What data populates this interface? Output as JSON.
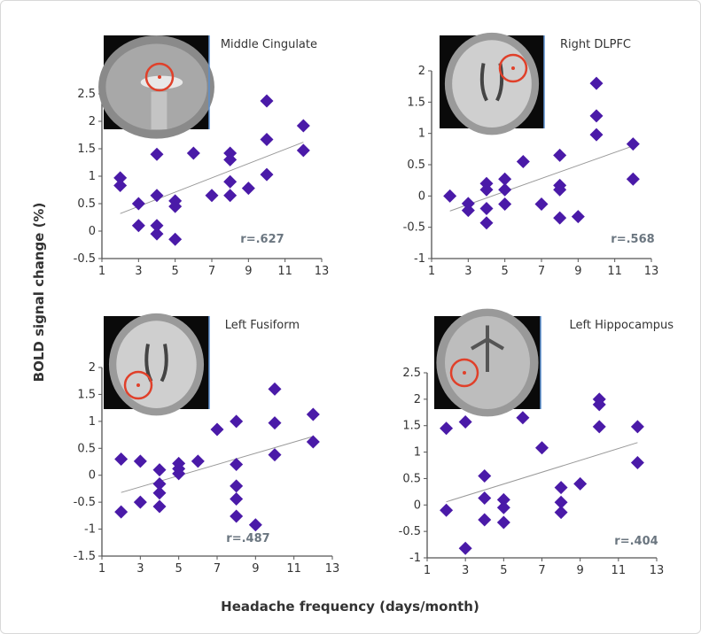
{
  "y_axis_label": "BOLD signal change (%)",
  "x_axis_label": "Headache frequency (days/month)",
  "marker_color": "#4a1aa8",
  "trend_color": "#999999",
  "chart_data": [
    {
      "type": "scatter",
      "title": "Middle Cingulate",
      "r_label": "r=.627",
      "xlim": [
        1,
        13
      ],
      "ylim": [
        -0.5,
        2.5
      ],
      "xticks": [
        1,
        3,
        5,
        7,
        9,
        11,
        13
      ],
      "yticks": [
        -0.5,
        0,
        0.5,
        1,
        1.5,
        2,
        2.5
      ],
      "x": [
        2,
        2,
        3,
        3,
        4,
        4,
        4,
        4,
        5,
        5,
        5,
        6,
        7,
        8,
        8,
        8,
        8,
        9,
        10,
        10,
        10,
        12,
        12
      ],
      "y": [
        0.97,
        0.83,
        0.5,
        0.1,
        1.4,
        0.65,
        0.1,
        -0.05,
        0.55,
        0.45,
        -0.15,
        1.42,
        0.65,
        1.42,
        1.3,
        0.9,
        0.65,
        0.78,
        2.37,
        1.67,
        1.03,
        1.92,
        1.47
      ],
      "trend": {
        "x": [
          2,
          12
        ],
        "y": [
          0.32,
          1.62
        ]
      }
    },
    {
      "type": "scatter",
      "title": "Right DLPFC",
      "r_label": "r=.568",
      "xlim": [
        1,
        13
      ],
      "ylim": [
        -1,
        2
      ],
      "xticks": [
        1,
        3,
        5,
        7,
        9,
        11,
        13
      ],
      "yticks": [
        -1,
        -0.5,
        0,
        0.5,
        1,
        1.5,
        2
      ],
      "x": [
        2,
        3,
        3,
        4,
        4,
        4,
        4,
        5,
        5,
        5,
        6,
        7,
        8,
        8,
        8,
        8,
        9,
        10,
        10,
        10,
        12,
        12
      ],
      "y": [
        0,
        -0.12,
        -0.23,
        0.2,
        0.1,
        -0.2,
        -0.43,
        0.27,
        0.1,
        -0.13,
        0.55,
        -0.13,
        0.65,
        0.17,
        0.1,
        -0.35,
        -0.33,
        1.8,
        1.28,
        0.98,
        0.83,
        0.27
      ],
      "trend": {
        "x": [
          2,
          12
        ],
        "y": [
          -0.24,
          0.8
        ]
      }
    },
    {
      "type": "scatter",
      "title": "Left Fusiform",
      "r_label": "r=.487",
      "xlim": [
        1,
        13
      ],
      "ylim": [
        -1.5,
        2
      ],
      "xticks": [
        1,
        3,
        5,
        7,
        9,
        11,
        13
      ],
      "yticks": [
        -1.5,
        -1,
        -0.5,
        0,
        0.5,
        1,
        1.5,
        2
      ],
      "x": [
        2,
        2,
        3,
        3,
        4,
        4,
        4,
        4,
        5,
        5,
        5,
        6,
        7,
        8,
        8,
        8,
        8,
        8,
        9,
        10,
        10,
        10,
        12,
        12
      ],
      "y": [
        0.3,
        -0.68,
        0.26,
        -0.5,
        0.1,
        -0.16,
        -0.33,
        -0.58,
        0.22,
        0.12,
        0.03,
        0.26,
        0.85,
        1.0,
        0.2,
        -0.2,
        -0.44,
        -0.76,
        -0.92,
        1.6,
        0.97,
        0.38,
        1.13,
        0.62
      ],
      "trend": {
        "x": [
          2,
          12
        ],
        "y": [
          -0.32,
          0.72
        ]
      }
    },
    {
      "type": "scatter",
      "title": "Left Hippocampus",
      "r_label": "r=.404",
      "xlim": [
        1,
        13
      ],
      "ylim": [
        -1,
        2.5
      ],
      "xticks": [
        1,
        3,
        5,
        7,
        9,
        11,
        13
      ],
      "yticks": [
        -1,
        -0.5,
        0,
        0.5,
        1,
        1.5,
        2,
        2.5
      ],
      "x": [
        2,
        2,
        3,
        3,
        4,
        4,
        4,
        5,
        5,
        5,
        6,
        7,
        8,
        8,
        8,
        9,
        10,
        10,
        10,
        12,
        12
      ],
      "y": [
        1.45,
        -0.1,
        1.57,
        -0.82,
        0.55,
        0.13,
        -0.28,
        0.1,
        -0.05,
        -0.33,
        1.65,
        1.08,
        0.33,
        0.05,
        -0.14,
        0.4,
        2.0,
        1.9,
        1.48,
        1.48,
        0.8
      ],
      "trend": {
        "x": [
          2,
          12
        ],
        "y": [
          0.06,
          1.18
        ]
      }
    }
  ]
}
